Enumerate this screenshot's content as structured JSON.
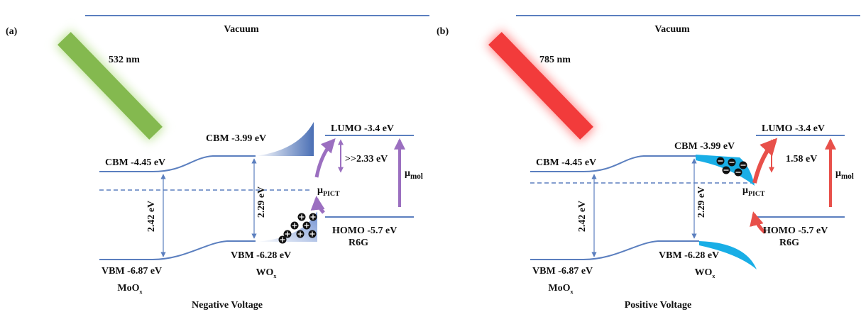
{
  "panels": [
    {
      "label": "(a)",
      "vacuum": "Vacuum",
      "laser": "532 nm",
      "moox_cbm": "CBM -4.45 eV",
      "moox_vbm": "VBM -6.87 eV",
      "moox_gap": "2.42 eV",
      "moox_name": {
        "main": "MoO",
        "sub": "x"
      },
      "wox_cbm": "CBM -3.99 eV",
      "wox_vbm": "VBM -6.28 eV",
      "wox_gap": "2.29 eV",
      "wox_name": {
        "main": "WO",
        "sub": "x"
      },
      "lumo": "LUMO -3.4 eV",
      "homo": "HOMO -5.7 eV",
      "molecule": "R6G",
      "mol_gap": ">>2.33 eV",
      "mu_mol": {
        "main": "μ",
        "sub": "mol"
      },
      "mu_pict": {
        "main": "μ",
        "sub": "PICT"
      },
      "voltage": "Negative Voltage"
    },
    {
      "label": "(b)",
      "vacuum": "Vacuum",
      "laser": "785 nm",
      "moox_cbm": "CBM -4.45 eV",
      "moox_vbm": "VBM -6.87 eV",
      "moox_gap": "2.42 eV",
      "moox_name": {
        "main": "MoO",
        "sub": "x"
      },
      "wox_cbm": "CBM -3.99 eV",
      "wox_vbm": "VBM -6.28 eV",
      "wox_gap": "2.29 eV",
      "wox_name": {
        "main": "WO",
        "sub": "x"
      },
      "lumo": "LUMO -3.4 eV",
      "homo": "HOMO -5.7 eV",
      "molecule": "R6G",
      "mol_gap": "1.58 eV",
      "mu_mol": {
        "main": "μ",
        "sub": "mol"
      },
      "mu_pict": {
        "main": "μ",
        "sub": "PICT"
      },
      "voltage": "Positive Voltage"
    }
  ]
}
